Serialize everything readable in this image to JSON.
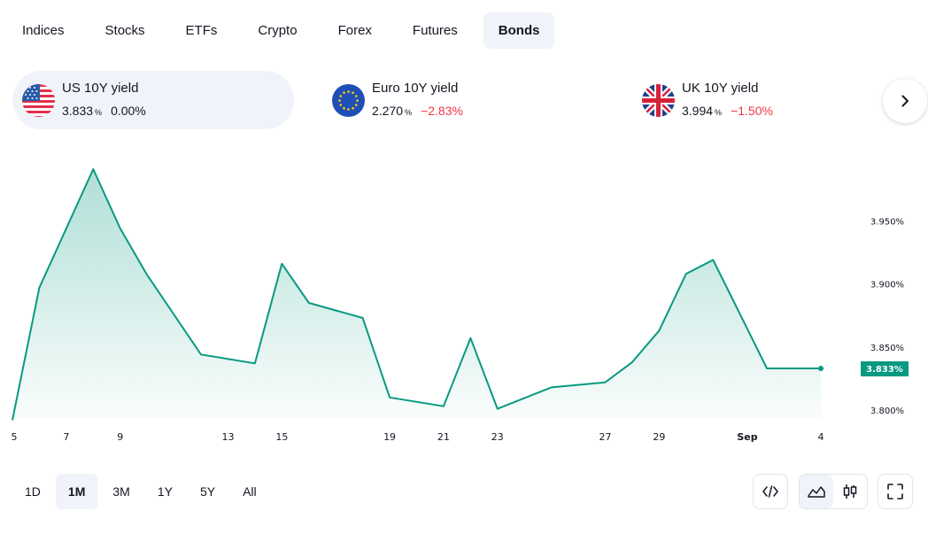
{
  "tabs": [
    {
      "label": "Indices"
    },
    {
      "label": "Stocks"
    },
    {
      "label": "ETFs"
    },
    {
      "label": "Crypto"
    },
    {
      "label": "Forex"
    },
    {
      "label": "Futures"
    },
    {
      "label": "Bonds",
      "active": true
    }
  ],
  "tickers": [
    {
      "name": "US 10Y yield",
      "price": "3.833",
      "unit": "%",
      "change": "0.00%",
      "direction": "flat",
      "flag": "us-flag-icon"
    },
    {
      "name": "Euro 10Y yield",
      "price": "2.270",
      "unit": "%",
      "change": "−2.83%",
      "direction": "down",
      "flag": "eu-flag-icon"
    },
    {
      "name": "UK 10Y yield",
      "price": "3.994",
      "unit": "%",
      "change": "−1.50%",
      "direction": "down",
      "flag": "uk-flag-icon"
    }
  ],
  "ranges": [
    {
      "label": "1D"
    },
    {
      "label": "1M",
      "active": true
    },
    {
      "label": "3M"
    },
    {
      "label": "1Y"
    },
    {
      "label": "5Y"
    },
    {
      "label": "All"
    }
  ],
  "colors": {
    "line": "#089981",
    "negative": "#f23645",
    "active_bg": "#f0f3fa"
  },
  "chart_data": {
    "type": "area",
    "series": [
      {
        "x": [
          "Aug 5",
          "Aug 6",
          "Aug 8",
          "Aug 9",
          "Aug 10",
          "Aug 12",
          "Aug 14",
          "Aug 15",
          "Aug 16",
          "Aug 18",
          "Aug 19",
          "Aug 21",
          "Aug 22",
          "Aug 23",
          "Aug 25",
          "Aug 27",
          "Aug 28",
          "Aug 29",
          "Aug 30",
          "Aug 31",
          "Sep 2",
          "Sep 4"
        ],
        "values": [
          3.792,
          3.897,
          3.991,
          3.944,
          3.907,
          3.844,
          3.837,
          3.916,
          3.885,
          3.873,
          3.81,
          3.803,
          3.857,
          3.801,
          3.818,
          3.822,
          3.838,
          3.863,
          3.908,
          3.919,
          3.833,
          3.833
        ]
      }
    ],
    "x_ticks": [
      {
        "label": "5",
        "day": 5
      },
      {
        "label": "7",
        "day": 7
      },
      {
        "label": "9",
        "day": 9
      },
      {
        "label": "13",
        "day": 13
      },
      {
        "label": "15",
        "day": 15
      },
      {
        "label": "19",
        "day": 19
      },
      {
        "label": "21",
        "day": 21
      },
      {
        "label": "23",
        "day": 23
      },
      {
        "label": "27",
        "day": 27
      },
      {
        "label": "29",
        "day": 29
      },
      {
        "label": "Sep",
        "day": 32
      },
      {
        "label": "4",
        "day": 35
      }
    ],
    "y_ticks": [
      {
        "label": "3.950%",
        "value": 3.95
      },
      {
        "label": "3.900%",
        "value": 3.9
      },
      {
        "label": "3.850%",
        "value": 3.85
      },
      {
        "label": "3.800%",
        "value": 3.8
      }
    ],
    "last_value_label": "3.833%",
    "ylim": [
      3.79,
      4.0
    ]
  }
}
